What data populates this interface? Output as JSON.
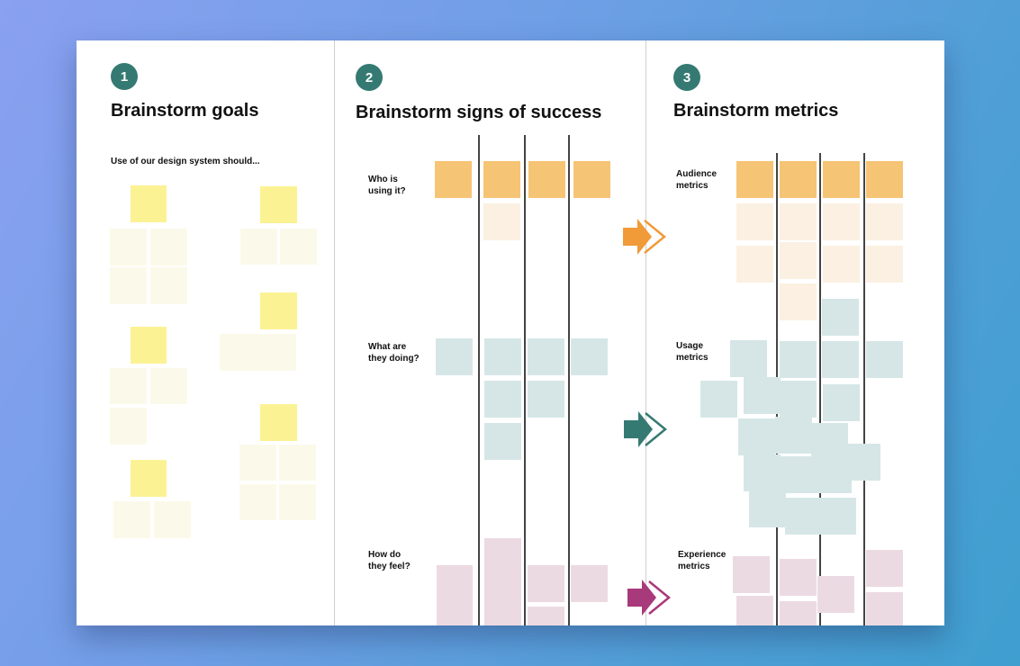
{
  "columns": [
    {
      "number": "1",
      "title": "Brainstorm goals",
      "prompt": "Use of our design system should..."
    },
    {
      "number": "2",
      "title": "Brainstorm signs of success",
      "rows": [
        {
          "line1": "Who is",
          "line2": "using it?"
        },
        {
          "line1": "What are",
          "line2": "they doing?"
        },
        {
          "line1": "How do",
          "line2": "they feel?"
        }
      ]
    },
    {
      "number": "3",
      "title": "Brainstorm metrics",
      "rows": [
        {
          "line1": "Audience",
          "line2": "metrics"
        },
        {
          "line1": "Usage",
          "line2": "metrics"
        },
        {
          "line1": "Experience",
          "line2": "metrics"
        }
      ]
    }
  ],
  "arrows": [
    {
      "name": "audience",
      "color": "#f19a38"
    },
    {
      "name": "usage",
      "color": "#357a72"
    },
    {
      "name": "experience",
      "color": "#a8397a"
    }
  ],
  "colors": {
    "badge": "#357a72",
    "sticky_yellow": "#fbf294",
    "sticky_yellow_light": "#fbfaea",
    "sticky_orange": "#f6c475",
    "sticky_orange_light": "#fbf0e2",
    "sticky_teal": "#d6e6e6",
    "sticky_pink": "#ecdae3"
  }
}
